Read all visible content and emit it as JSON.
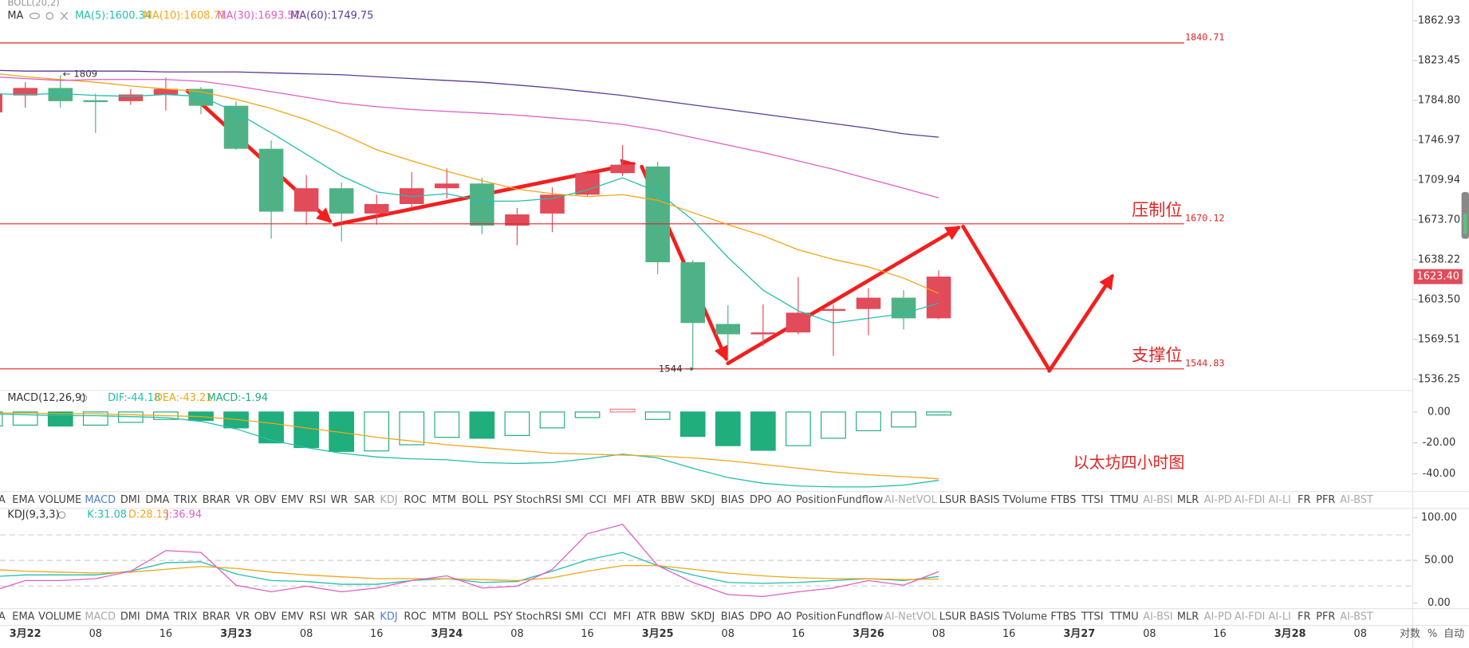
{
  "chart_data": [
    {
      "type": "candlestick",
      "title": "MA",
      "subtitle": "BOLL(20,2)",
      "log": true,
      "ylim": [
        1536.25,
        1862.93
      ],
      "yticks": [
        1862.93,
        1823.45,
        {
          "value": 1784.8,
          "label": "1784.80"
        },
        1746.97,
        1709.94,
        {
          "value": 1673.7,
          "label": "1673.70"
        },
        1638.22,
        {
          "value": 1603.5,
          "label": "1603.50"
        },
        1569.51,
        1536.25
      ],
      "up_color": "#e14b5a",
      "down_color": "#4fb286",
      "open": [
        1773.3,
        1789.5,
        1796.7,
        1784.9,
        1784.0,
        1790.4,
        1795.8,
        1779.6,
        1738.9,
        1681.1,
        1702.4,
        1679.4,
        1688.0,
        1702.4,
        1706.7,
        1668.5,
        1679.4,
        1696.5,
        1716.3,
        1722.4,
        1636.0,
        1582.6,
        1573.8,
        1575.4,
        1593.8,
        1595.4,
        1605.1,
        1587.4
      ],
      "high": [
        1795.8,
        1802.2,
        1809,
        1791.3,
        1795.8,
        1806.7,
        1797.7,
        1784.0,
        1746.7,
        1714.6,
        1707.6,
        1696.5,
        1717.2,
        1720.6,
        1712.0,
        1684.5,
        1703.3,
        1718.9,
        1742.4,
        1726.7,
        1637.7,
        1598.6,
        1599.4,
        1623.0,
        1599.4,
        1613.2,
        1611.6,
        1628.7
      ],
      "low": [
        1768.9,
        1777.8,
        1777.8,
        1753.8,
        1780.4,
        1775.1,
        1771.6,
        1738.0,
        1656.9,
        1669.4,
        1654.4,
        1669.4,
        1684.5,
        1693.1,
        1661.0,
        1651.0,
        1662.7,
        1694.8,
        1713.7,
        1625.4,
        1544,
        1551.8,
        1563.6,
        1573.8,
        1555.7,
        1573.0,
        1577.8,
        1586.6
      ],
      "close": [
        1791.3,
        1796.7,
        1784.0,
        1783.1,
        1790.4,
        1795.8,
        1779.6,
        1738.9,
        1681.1,
        1702.4,
        1679.4,
        1688.0,
        1702.4,
        1706.7,
        1668.5,
        1678.6,
        1696.5,
        1716.3,
        1724.1,
        1636.0,
        1583.4,
        1573.8,
        1575.4,
        1592.2,
        1595.4,
        1605.1,
        1587.4,
        1623.4
      ],
      "last_price": {
        "value": 1623.4,
        "label": "1623.40"
      },
      "series": [
        {
          "name": "MA(5):1600.34",
          "color": "#22bfae",
          "values": [
            1791.3,
            1790.4,
            1791.3,
            1789.5,
            1788.6,
            1790.4,
            1788.6,
            1773.3,
            1753.8,
            1733.8,
            1713.7,
            1699.1,
            1694.8,
            1697.4,
            1690.6,
            1690.6,
            1693.1,
            1700.8,
            1712.0,
            1699.1,
            1673.5,
            1640.3,
            1611.6,
            1593.8,
            1583.4,
            1587.4,
            1591.4,
            1600.34
          ]
        },
        {
          "name": "MA(10):1608.71",
          "color": "#f2a516",
          "values": [
            1811.3,
            1807.6,
            1804.9,
            1802.2,
            1798.6,
            1795.8,
            1793.1,
            1785.8,
            1777.0,
            1766.2,
            1753.0,
            1738.0,
            1727.6,
            1718.0,
            1709.4,
            1701.6,
            1697.4,
            1694.8,
            1696.5,
            1691.4,
            1680.2,
            1669.4,
            1659.5,
            1647.0,
            1638.5,
            1631.9,
            1622.2,
            1608.71
          ]
        },
        {
          "name": "MA(30):1693.57",
          "color": "#e05ec4",
          "values": [
            1807.6,
            1805.8,
            1804.0,
            1804.9,
            1804.9,
            1804.9,
            1803.1,
            1798.6,
            1793.1,
            1787.7,
            1782.2,
            1778.7,
            1776.0,
            1774.2,
            1772.5,
            1770.7,
            1768.0,
            1765.4,
            1761.8,
            1756.5,
            1749.4,
            1742.4,
            1735.4,
            1727.6,
            1719.8,
            1711.0,
            1702.4,
            1693.57
          ]
        },
        {
          "name": "MA(60):1749.75",
          "color": "#5b3a96",
          "values": [
            1814.0,
            1813.1,
            1813.1,
            1813.1,
            1813.1,
            1812.2,
            1812.2,
            1812.2,
            1811.3,
            1810.4,
            1809.5,
            1807.6,
            1805.8,
            1804.0,
            1802.2,
            1799.5,
            1796.7,
            1793.1,
            1789.5,
            1784.9,
            1780.4,
            1776.0,
            1771.6,
            1767.1,
            1762.7,
            1758.2,
            1752.9,
            1749.75
          ]
        }
      ],
      "levels": [
        {
          "value": 1840.71
        },
        {
          "value": 1670.12,
          "label": "压制位"
        },
        {
          "value": 1544.83,
          "label": "支撑位"
        }
      ],
      "annotations": [
        "← 1809",
        "1544 →",
        "以太坊四小时图"
      ]
    },
    {
      "type": "macd",
      "title": "MACD(12,26,9)",
      "ylim": [
        -50.9,
        13.3
      ],
      "yticks": [
        {
          "value": 0,
          "label": "0.00"
        },
        {
          "value": -20,
          "label": "-20.00"
        },
        {
          "value": -40,
          "label": "-40.00"
        }
      ],
      "histogram": {
        "name": "MACD:-1.94",
        "color": "#1fae7c",
        "up_color": "#f07a86",
        "values": [
          -9.1,
          -8.5,
          -9.1,
          -8.5,
          -6.7,
          -4.8,
          -5.5,
          -10.3,
          -20.0,
          -23.0,
          -25.5,
          -25.2,
          -21.2,
          -16.4,
          -17.0,
          -15.2,
          -10.3,
          -3.6,
          1.8,
          -4.8,
          -15.8,
          -21.8,
          -24.8,
          -21.8,
          -17.0,
          -12.1,
          -9.7,
          -1.94
        ]
      },
      "series": [
        {
          "name": "DIF:-44.18",
          "color": "#22bfae",
          "values": [
            -1.2,
            -1.8,
            -2.4,
            -2.4,
            -3.0,
            -3.6,
            -6.1,
            -10.9,
            -18.2,
            -23.0,
            -26.7,
            -29.1,
            -30.3,
            -30.9,
            -32.7,
            -33.3,
            -32.7,
            -30.3,
            -27.3,
            -29.7,
            -36.4,
            -42.4,
            -46.1,
            -47.9,
            -48.5,
            -48.5,
            -47.3,
            -44.18
          ]
        },
        {
          "name": "DEA:-43.21",
          "color": "#f2a516",
          "values": [
            -0.6,
            -0.6,
            -1.2,
            -1.2,
            -1.8,
            -2.4,
            -3.0,
            -4.8,
            -7.3,
            -10.3,
            -13.3,
            -16.4,
            -18.8,
            -21.2,
            -23.0,
            -24.8,
            -26.7,
            -27.3,
            -27.9,
            -28.5,
            -29.7,
            -31.5,
            -33.9,
            -36.4,
            -38.8,
            -40.6,
            -41.8,
            -43.21
          ]
        }
      ]
    },
    {
      "type": "kdj",
      "title": "KDJ(9,3,3)",
      "ylim": [
        -6.6,
        108.8
      ],
      "yticks": [
        {
          "value": 100,
          "label": "100.00"
        },
        {
          "value": 50,
          "label": "50.00"
        },
        {
          "value": 0,
          "label": "0.00"
        }
      ],
      "reference_lines": [
        80,
        50,
        20
      ],
      "series": [
        {
          "name": "K:31.08",
          "color": "#22bfae",
          "values": [
            30.8,
            33.0,
            33.0,
            33.0,
            37.4,
            47.3,
            48.4,
            34.1,
            26.4,
            25.3,
            22.0,
            22.0,
            26.4,
            28.6,
            24.2,
            25.3,
            37.4,
            50.5,
            59.3,
            44.0,
            33.0,
            24.2,
            23.1,
            24.2,
            26.4,
            28.6,
            26.4,
            31.08
          ]
        },
        {
          "name": "D:28.15",
          "color": "#f2a516",
          "values": [
            39.6,
            37.4,
            36.3,
            35.2,
            36.3,
            39.6,
            42.9,
            40.7,
            36.3,
            33.0,
            30.8,
            28.6,
            28.6,
            28.6,
            27.5,
            26.4,
            29.7,
            37.4,
            44.0,
            44.0,
            39.6,
            35.2,
            31.9,
            29.7,
            28.6,
            28.6,
            27.5,
            28.15
          ]
        },
        {
          "name": "J:36.94",
          "color": "#e05ec4",
          "values": [
            13.2,
            26.4,
            26.4,
            28.6,
            37.4,
            61.5,
            59.3,
            20.9,
            13.2,
            19.8,
            13.2,
            17.6,
            26.4,
            31.9,
            17.6,
            19.8,
            39.6,
            81.3,
            92.3,
            44.0,
            24.2,
            9.9,
            7.7,
            13.2,
            17.6,
            26.4,
            20.9,
            36.94
          ]
        }
      ]
    }
  ],
  "tabs": [
    "A",
    "EMA",
    "VOLUME",
    "MACD",
    "DMI",
    "DMA",
    "TRIX",
    "BRAR",
    "VR",
    "OBV",
    "EMV",
    "RSI",
    "WR",
    "SAR",
    "KDJ",
    "ROC",
    "MTM",
    "BOLL",
    "PSY",
    "StochRSI",
    "SMI",
    "CCI",
    "MFI",
    "ATR",
    "BBW",
    "SKDJ",
    "BIAS",
    "DPO",
    "AO",
    "Position",
    "Fundflow",
    "AI-NetVOL",
    "LSUR",
    "BASIS",
    "TVolume",
    "FTBS",
    "TTSI",
    "TTMU",
    "AI-BSI",
    "MLR",
    "AI-PD",
    "AI-FDI",
    "AI-LI",
    "FR",
    "PFR",
    "AI-BST"
  ],
  "tab_rows": [
    {
      "active": 3,
      "muted": [
        14,
        31,
        38,
        40,
        41,
        42,
        45
      ]
    },
    {
      "active": 14,
      "muted": [
        3,
        31,
        38,
        40,
        41,
        42,
        45
      ]
    }
  ],
  "time_axis": [
    "3月22",
    "08",
    "16",
    "3月23",
    "08",
    "16",
    "3月24",
    "08",
    "16",
    "3月25",
    "08",
    "16",
    "3月26",
    "08",
    "16",
    "3月27",
    "08",
    "16",
    "3月28",
    "08"
  ],
  "scale_buttons": [
    "对数",
    "%",
    "自动"
  ]
}
